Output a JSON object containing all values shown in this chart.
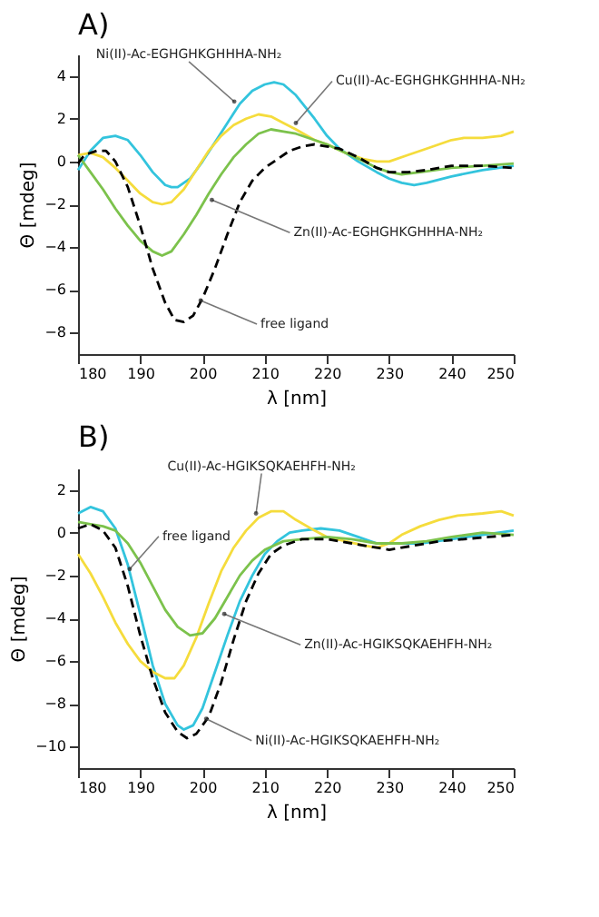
{
  "chart_data": [
    {
      "type": "line",
      "title": "A)",
      "xlabel": "λ [nm]",
      "ylabel": "Θ [mdeg]",
      "xlim": [
        180,
        250
      ],
      "ylim": [
        -9,
        5
      ],
      "xticks": [
        180,
        190,
        200,
        210,
        220,
        230,
        240,
        250
      ],
      "yticks": [
        -8,
        -6,
        -4,
        -2,
        0,
        2,
        4
      ],
      "series": [
        {
          "color": "#33c4dd",
          "line_style": "solid",
          "x": [
            180,
            182,
            184,
            186,
            188,
            190,
            192,
            194,
            195,
            196,
            198,
            200,
            202,
            204,
            206,
            208,
            210,
            211.5,
            213,
            215,
            218,
            220,
            222,
            225,
            228,
            230,
            232,
            234,
            236,
            240,
            245,
            250
          ],
          "values": [
            -0.4,
            0.5,
            1.1,
            1.2,
            1.0,
            0.3,
            -0.5,
            -1.1,
            -1.2,
            -1.2,
            -0.8,
            0,
            0.9,
            1.8,
            2.7,
            3.3,
            3.6,
            3.7,
            3.6,
            3.1,
            2.0,
            1.2,
            0.6,
            0,
            -0.5,
            -0.8,
            -1.0,
            -1.1,
            -1.0,
            -0.7,
            -0.4,
            -0.2
          ]
        },
        {
          "color": "#f5dc3c",
          "line_style": "solid",
          "x": [
            180,
            182,
            184,
            186,
            188,
            190,
            192,
            193.5,
            195,
            197,
            199,
            201,
            203,
            205,
            207,
            209,
            211,
            213,
            215,
            218,
            220,
            223,
            226,
            228,
            230,
            233,
            236,
            240,
            242,
            245,
            248,
            250
          ],
          "values": [
            0.3,
            0.4,
            0.2,
            -0.3,
            -0.9,
            -1.5,
            -1.9,
            -2.0,
            -1.9,
            -1.3,
            -0.4,
            0.5,
            1.2,
            1.7,
            2.0,
            2.2,
            2.1,
            1.8,
            1.5,
            1.0,
            0.8,
            0.4,
            0.1,
            0.0,
            0.0,
            0.3,
            0.6,
            1.0,
            1.1,
            1.1,
            1.2,
            1.4
          ]
        },
        {
          "color": "#7cc24c",
          "line_style": "solid",
          "x": [
            180,
            182,
            184,
            186,
            188,
            190,
            192,
            193.5,
            195,
            197,
            199,
            201,
            203,
            205,
            207,
            209,
            211,
            213,
            215,
            218,
            220,
            223,
            226,
            228,
            230,
            232,
            235,
            240,
            245,
            250
          ],
          "values": [
            0.3,
            -0.5,
            -1.3,
            -2.2,
            -3.0,
            -3.7,
            -4.2,
            -4.4,
            -4.2,
            -3.4,
            -2.5,
            -1.5,
            -0.6,
            0.2,
            0.8,
            1.3,
            1.5,
            1.4,
            1.3,
            1.0,
            0.8,
            0.4,
            0,
            -0.3,
            -0.5,
            -0.6,
            -0.5,
            -0.3,
            -0.2,
            -0.1
          ]
        },
        {
          "color": "#000000",
          "line_style": "dashed",
          "x": [
            180,
            181,
            183,
            184.5,
            186,
            188,
            190,
            192,
            194,
            195.5,
            197,
            198.5,
            200,
            202,
            204,
            206,
            208,
            210,
            212,
            214,
            216,
            218,
            220,
            222,
            225,
            228,
            230,
            233,
            236,
            240,
            245,
            250
          ],
          "values": [
            -0.1,
            0.3,
            0.5,
            0.5,
            0,
            -1.2,
            -3.0,
            -5.0,
            -6.6,
            -7.4,
            -7.5,
            -7.2,
            -6.4,
            -5.0,
            -3.4,
            -1.9,
            -0.9,
            -0.3,
            0.1,
            0.5,
            0.7,
            0.8,
            0.7,
            0.6,
            0.2,
            -0.3,
            -0.5,
            -0.5,
            -0.4,
            -0.2,
            -0.2,
            -0.3
          ]
        }
      ],
      "annotations": [
        {
          "text": "Ni(II)-Ac-EGHGHKGHHHA-NH₂",
          "x": 205.1,
          "y": 2.8
        },
        {
          "text": "Cu(II)-Ac-EGHGHKGHHHA-NH₂",
          "x": 215,
          "y": 1.8
        },
        {
          "text": "Zn(II)-Ac-EGHGHKGHHHA-NH₂",
          "x": 201.5,
          "y": -1.8
        },
        {
          "text": "free ligand",
          "x": 199.7,
          "y": -6.5
        }
      ]
    },
    {
      "type": "line",
      "title": "B)",
      "xlabel": "λ [nm]",
      "ylabel": "Θ [mdeg]",
      "xlim": [
        180,
        250
      ],
      "ylim": [
        -11,
        3
      ],
      "xticks": [
        180,
        190,
        200,
        210,
        220,
        230,
        240,
        250
      ],
      "yticks": [
        -10,
        -8,
        -6,
        -4,
        -2,
        0,
        2
      ],
      "series": [
        {
          "color": "#33c4dd",
          "line_style": "solid",
          "x": [
            180,
            182,
            184,
            186,
            188,
            190,
            192,
            194,
            196,
            197,
            198.5,
            200,
            202,
            204,
            206,
            208,
            210,
            212,
            214,
            216,
            219,
            222,
            225,
            228,
            230,
            235,
            240,
            245,
            250
          ],
          "values": [
            0.9,
            1.2,
            1.0,
            0.2,
            -1.5,
            -3.8,
            -6.2,
            -8.0,
            -9.0,
            -9.2,
            -9.0,
            -8.2,
            -6.5,
            -4.8,
            -3.2,
            -2.0,
            -1.0,
            -0.4,
            0,
            0.1,
            0.2,
            0.1,
            -0.2,
            -0.5,
            -0.5,
            -0.5,
            -0.3,
            -0.1,
            0.1
          ]
        },
        {
          "color": "#f5dc3c",
          "line_style": "solid",
          "x": [
            180,
            182,
            184,
            186,
            188,
            190,
            192,
            194,
            195.5,
            197,
            199,
            201,
            203,
            205,
            207,
            209,
            211,
            213,
            215,
            218,
            220,
            223,
            226,
            228,
            230,
            232,
            235,
            238,
            241,
            245,
            248,
            250
          ],
          "values": [
            -1.0,
            -1.9,
            -3.0,
            -4.2,
            -5.2,
            -6.0,
            -6.5,
            -6.8,
            -6.8,
            -6.2,
            -4.9,
            -3.3,
            -1.8,
            -0.7,
            0.1,
            0.7,
            1.0,
            1.0,
            0.6,
            0.1,
            -0.2,
            -0.4,
            -0.6,
            -0.7,
            -0.5,
            -0.1,
            0.3,
            0.6,
            0.8,
            0.9,
            1.0,
            0.8
          ]
        },
        {
          "color": "#7cc24c",
          "line_style": "solid",
          "x": [
            180,
            182,
            184,
            186,
            188,
            190,
            192,
            194,
            196,
            198,
            200,
            202,
            204,
            206,
            208,
            210,
            213,
            216,
            220,
            224,
            228,
            232,
            236,
            240,
            245,
            250
          ],
          "values": [
            0.5,
            0.4,
            0.3,
            0.1,
            -0.5,
            -1.4,
            -2.5,
            -3.6,
            -4.4,
            -4.8,
            -4.7,
            -4.0,
            -3.0,
            -2.0,
            -1.3,
            -0.8,
            -0.4,
            -0.3,
            -0.2,
            -0.3,
            -0.5,
            -0.5,
            -0.4,
            -0.2,
            0.0,
            -0.1
          ]
        },
        {
          "color": "#000000",
          "line_style": "dashed",
          "x": [
            180,
            182,
            184,
            186,
            188,
            190,
            192,
            194,
            196,
            197.5,
            199,
            201,
            203,
            205,
            207,
            209,
            211,
            213,
            216,
            220,
            224,
            228,
            230,
            234,
            238,
            242,
            246,
            250
          ],
          "values": [
            0.2,
            0.4,
            0.1,
            -0.7,
            -2.5,
            -4.8,
            -6.8,
            -8.4,
            -9.3,
            -9.6,
            -9.4,
            -8.6,
            -7.0,
            -5.0,
            -3.2,
            -1.9,
            -1.0,
            -0.6,
            -0.3,
            -0.3,
            -0.5,
            -0.7,
            -0.8,
            -0.6,
            -0.4,
            -0.3,
            -0.2,
            -0.1
          ]
        }
      ],
      "annotations": [
        {
          "text": "Cu(II)-Ac-HGIKSQKAEHFH-NH₂",
          "x": 208.6,
          "y": 0.9
        },
        {
          "text": "free ligand",
          "x": 188.3,
          "y": -1.7
        },
        {
          "text": "Zn(II)-Ac-HGIKSQKAEHFH-NH₂",
          "x": 203.5,
          "y": -3.8
        },
        {
          "text": "Ni(II)-Ac-HGIKSQKAEHFH-NH₂",
          "x": 200.6,
          "y": -8.7
        }
      ]
    }
  ]
}
